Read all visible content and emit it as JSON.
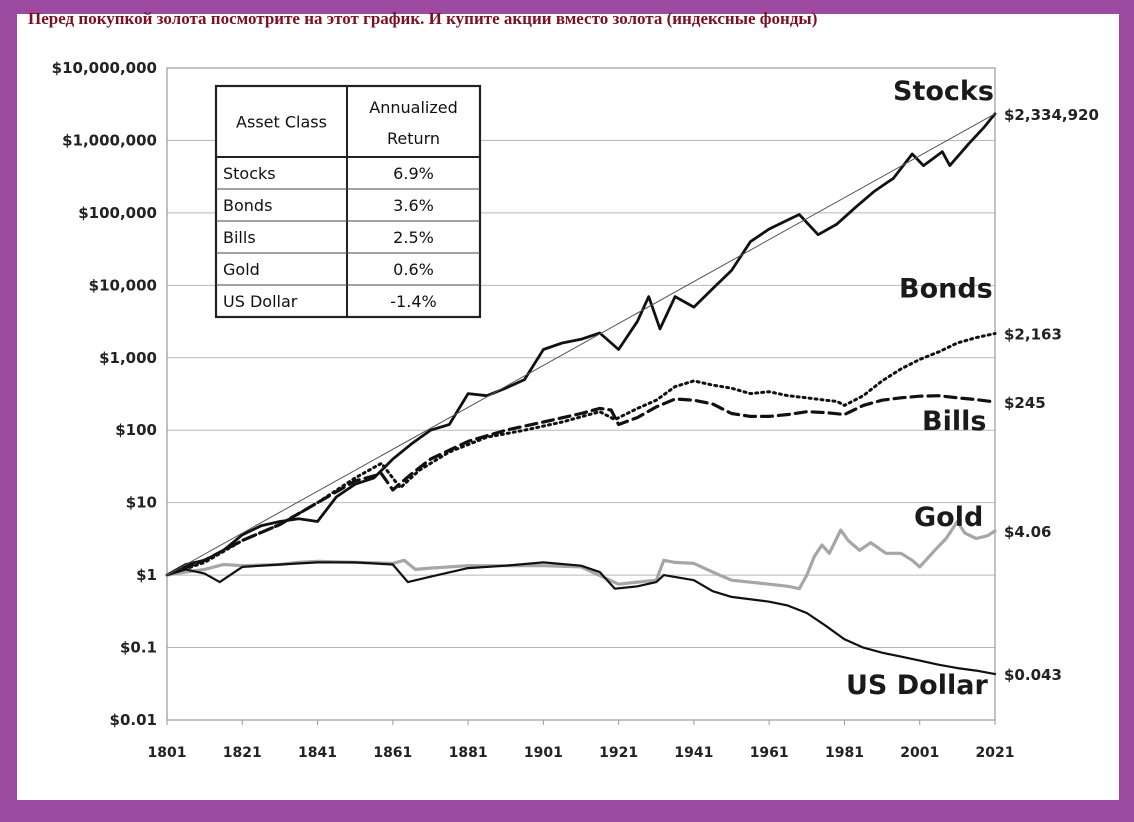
{
  "headline": "Перед покупкой золота посмотрите на этот график. И купите акции вместо золота (индексные фонды)",
  "colors": {
    "frame": "#9b4aa0",
    "headline": "#7b1020",
    "stocks": "#111111",
    "bonds": "#111111",
    "bills": "#111111",
    "gold": "#a6a6a6",
    "usd": "#111111",
    "trend": "#555555"
  },
  "chart_data": {
    "type": "line",
    "yscale": "log",
    "xlim": [
      1801,
      2021
    ],
    "ylim": [
      0.01,
      10000000
    ],
    "grid": "horizontal",
    "ytick_labels": [
      "$10,000,000",
      "$1,000,000",
      "$100,000",
      "$10,000",
      "$1,000",
      "$100",
      "$10",
      "$1",
      "$0.1",
      "$0.01"
    ],
    "ytick_values": [
      10000000,
      1000000,
      100000,
      10000,
      1000,
      100,
      10,
      1,
      0.1,
      0.01
    ],
    "xtick_labels": [
      "1801",
      "1821",
      "1841",
      "1861",
      "1881",
      "1901",
      "1921",
      "1941",
      "1961",
      "1981",
      "2001",
      "2021"
    ],
    "xtick_values": [
      1801,
      1821,
      1841,
      1861,
      1881,
      1901,
      1921,
      1941,
      1961,
      1981,
      2001,
      2021
    ],
    "series": [
      {
        "name": "Stocks",
        "end_label": "$2,334,920",
        "style": "solid-thick",
        "points": [
          [
            1801,
            1
          ],
          [
            1806,
            1.4
          ],
          [
            1811,
            1.6
          ],
          [
            1816,
            2.2
          ],
          [
            1821,
            3.6
          ],
          [
            1826,
            4.8
          ],
          [
            1831,
            5.5
          ],
          [
            1836,
            6
          ],
          [
            1841,
            5.5
          ],
          [
            1846,
            12
          ],
          [
            1851,
            18
          ],
          [
            1856,
            22
          ],
          [
            1861,
            40
          ],
          [
            1866,
            65
          ],
          [
            1871,
            100
          ],
          [
            1876,
            120
          ],
          [
            1881,
            320
          ],
          [
            1886,
            300
          ],
          [
            1891,
            380
          ],
          [
            1896,
            500
          ],
          [
            1901,
            1300
          ],
          [
            1906,
            1600
          ],
          [
            1911,
            1800
          ],
          [
            1916,
            2200
          ],
          [
            1921,
            1300
          ],
          [
            1926,
            3200
          ],
          [
            1929,
            7000
          ],
          [
            1932,
            2500
          ],
          [
            1936,
            7000
          ],
          [
            1941,
            5000
          ],
          [
            1946,
            9000
          ],
          [
            1951,
            16000
          ],
          [
            1956,
            40000
          ],
          [
            1961,
            60000
          ],
          [
            1966,
            80000
          ],
          [
            1969,
            95000
          ],
          [
            1974,
            50000
          ],
          [
            1979,
            70000
          ],
          [
            1984,
            120000
          ],
          [
            1989,
            200000
          ],
          [
            1994,
            300000
          ],
          [
            1999,
            650000
          ],
          [
            2002,
            450000
          ],
          [
            2007,
            700000
          ],
          [
            2009,
            450000
          ],
          [
            2014,
            900000
          ],
          [
            2018,
            1500000
          ],
          [
            2021,
            2334920
          ]
        ]
      },
      {
        "name": "Bonds",
        "end_label": "$2,163",
        "style": "dotted",
        "points": [
          [
            1801,
            1
          ],
          [
            1811,
            1.5
          ],
          [
            1821,
            3
          ],
          [
            1831,
            5
          ],
          [
            1841,
            10
          ],
          [
            1851,
            22
          ],
          [
            1858,
            35
          ],
          [
            1863,
            16
          ],
          [
            1868,
            28
          ],
          [
            1876,
            50
          ],
          [
            1886,
            80
          ],
          [
            1896,
            100
          ],
          [
            1906,
            130
          ],
          [
            1916,
            180
          ],
          [
            1920,
            140
          ],
          [
            1926,
            200
          ],
          [
            1931,
            260
          ],
          [
            1936,
            400
          ],
          [
            1941,
            480
          ],
          [
            1946,
            420
          ],
          [
            1951,
            380
          ],
          [
            1956,
            320
          ],
          [
            1961,
            340
          ],
          [
            1966,
            300
          ],
          [
            1971,
            280
          ],
          [
            1976,
            260
          ],
          [
            1979,
            250
          ],
          [
            1981,
            220
          ],
          [
            1986,
            300
          ],
          [
            1991,
            480
          ],
          [
            1996,
            700
          ],
          [
            2001,
            950
          ],
          [
            2006,
            1200
          ],
          [
            2011,
            1600
          ],
          [
            2016,
            1900
          ],
          [
            2021,
            2163
          ]
        ]
      },
      {
        "name": "Bills",
        "end_label": "$245",
        "style": "dashed",
        "points": [
          [
            1801,
            1
          ],
          [
            1811,
            1.6
          ],
          [
            1821,
            3
          ],
          [
            1831,
            5
          ],
          [
            1841,
            10
          ],
          [
            1851,
            20
          ],
          [
            1858,
            25
          ],
          [
            1861,
            15
          ],
          [
            1866,
            25
          ],
          [
            1871,
            40
          ],
          [
            1881,
            70
          ],
          [
            1891,
            100
          ],
          [
            1901,
            130
          ],
          [
            1911,
            170
          ],
          [
            1916,
            200
          ],
          [
            1919,
            190
          ],
          [
            1921,
            120
          ],
          [
            1926,
            150
          ],
          [
            1931,
            210
          ],
          [
            1936,
            270
          ],
          [
            1941,
            260
          ],
          [
            1946,
            230
          ],
          [
            1951,
            170
          ],
          [
            1956,
            155
          ],
          [
            1961,
            155
          ],
          [
            1966,
            165
          ],
          [
            1971,
            180
          ],
          [
            1976,
            175
          ],
          [
            1981,
            165
          ],
          [
            1986,
            220
          ],
          [
            1991,
            260
          ],
          [
            1996,
            280
          ],
          [
            2001,
            295
          ],
          [
            2006,
            300
          ],
          [
            2011,
            280
          ],
          [
            2016,
            265
          ],
          [
            2021,
            245
          ]
        ]
      },
      {
        "name": "Gold",
        "end_label": "$4.06",
        "style": "solid-gray",
        "points": [
          [
            1801,
            1
          ],
          [
            1806,
            1.1
          ],
          [
            1811,
            1.2
          ],
          [
            1816,
            1.4
          ],
          [
            1821,
            1.35
          ],
          [
            1831,
            1.4
          ],
          [
            1836,
            1.5
          ],
          [
            1841,
            1.55
          ],
          [
            1851,
            1.5
          ],
          [
            1861,
            1.45
          ],
          [
            1864,
            1.6
          ],
          [
            1867,
            1.2
          ],
          [
            1871,
            1.25
          ],
          [
            1881,
            1.35
          ],
          [
            1891,
            1.35
          ],
          [
            1901,
            1.35
          ],
          [
            1911,
            1.3
          ],
          [
            1921,
            0.75
          ],
          [
            1926,
            0.8
          ],
          [
            1931,
            0.85
          ],
          [
            1933,
            1.6
          ],
          [
            1936,
            1.5
          ],
          [
            1941,
            1.45
          ],
          [
            1946,
            1.1
          ],
          [
            1951,
            0.85
          ],
          [
            1961,
            0.75
          ],
          [
            1966,
            0.7
          ],
          [
            1969,
            0.65
          ],
          [
            1971,
            1.0
          ],
          [
            1973,
            1.8
          ],
          [
            1975,
            2.6
          ],
          [
            1977,
            2.0
          ],
          [
            1980,
            4.2
          ],
          [
            1982,
            3.0
          ],
          [
            1985,
            2.2
          ],
          [
            1988,
            2.8
          ],
          [
            1992,
            2.0
          ],
          [
            1996,
            2.0
          ],
          [
            1999,
            1.6
          ],
          [
            2001,
            1.3
          ],
          [
            2005,
            2.2
          ],
          [
            2008,
            3.2
          ],
          [
            2011,
            5.5
          ],
          [
            2013,
            3.8
          ],
          [
            2016,
            3.2
          ],
          [
            2019,
            3.5
          ],
          [
            2021,
            4.06
          ]
        ]
      },
      {
        "name": "US Dollar",
        "end_label": "$0.043",
        "style": "solid-thin",
        "points": [
          [
            1801,
            1
          ],
          [
            1806,
            1.2
          ],
          [
            1811,
            1.05
          ],
          [
            1815,
            0.8
          ],
          [
            1821,
            1.3
          ],
          [
            1831,
            1.4
          ],
          [
            1841,
            1.5
          ],
          [
            1851,
            1.5
          ],
          [
            1861,
            1.4
          ],
          [
            1865,
            0.8
          ],
          [
            1871,
            0.95
          ],
          [
            1881,
            1.25
          ],
          [
            1891,
            1.35
          ],
          [
            1901,
            1.5
          ],
          [
            1911,
            1.35
          ],
          [
            1916,
            1.1
          ],
          [
            1920,
            0.65
          ],
          [
            1926,
            0.7
          ],
          [
            1931,
            0.8
          ],
          [
            1933,
            1.0
          ],
          [
            1941,
            0.85
          ],
          [
            1946,
            0.6
          ],
          [
            1951,
            0.5
          ],
          [
            1961,
            0.43
          ],
          [
            1966,
            0.38
          ],
          [
            1971,
            0.3
          ],
          [
            1976,
            0.2
          ],
          [
            1981,
            0.13
          ],
          [
            1986,
            0.1
          ],
          [
            1991,
            0.085
          ],
          [
            1996,
            0.075
          ],
          [
            2001,
            0.066
          ],
          [
            2006,
            0.058
          ],
          [
            2011,
            0.052
          ],
          [
            2016,
            0.048
          ],
          [
            2021,
            0.043
          ]
        ]
      },
      {
        "name": "",
        "style": "trend-thin",
        "points": [
          [
            1801,
            1
          ],
          [
            2021,
            2334920
          ]
        ]
      }
    ]
  },
  "table": {
    "header": [
      "Asset Class",
      "Annualized\nReturn"
    ],
    "header_lines": [
      "Annualized",
      "Return"
    ],
    "rows": [
      [
        "Stocks",
        "6.9%"
      ],
      [
        "Bonds",
        "3.6%"
      ],
      [
        "Bills",
        "2.5%"
      ],
      [
        "Gold",
        "0.6%"
      ],
      [
        "US Dollar",
        "-1.4%"
      ]
    ]
  }
}
